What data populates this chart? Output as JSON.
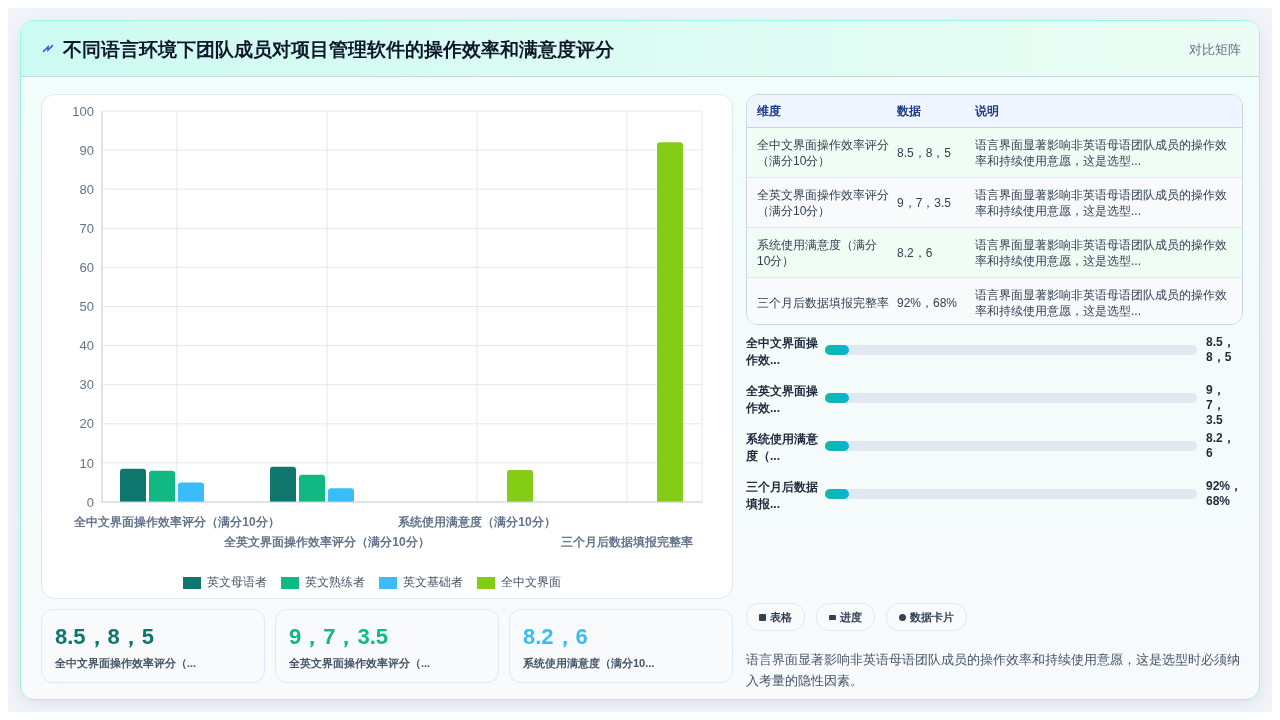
{
  "chart_data": [
    {
      "type": "bar",
      "title": "不同语言环境下团队成员对项目管理软件的操作效率和满意度评分",
      "categories": [
        "全中文界面操作效率评分（满分10分）",
        "全英文界面操作效率评分（满分10分）",
        "系统使用满意度（满分10分）",
        "三个月后数据填报完整率"
      ],
      "series": [
        {
          "name": "英文母语者",
          "color": "#0f766e",
          "values": [
            8.5,
            9,
            null,
            null
          ]
        },
        {
          "name": "英文熟练者",
          "color": "#10b981",
          "values": [
            8,
            7,
            null,
            null
          ]
        },
        {
          "name": "英文基础者",
          "color": "#38bdf8",
          "values": [
            5,
            3.5,
            null,
            null
          ]
        },
        {
          "name": "全中文界面",
          "color": "#84cc16",
          "values": [
            null,
            null,
            8.2,
            92
          ]
        }
      ],
      "ylim": [
        0,
        100
      ],
      "yticks": [
        0,
        10,
        20,
        30,
        40,
        50,
        60,
        70,
        80,
        90,
        100
      ],
      "grid": true,
      "legend": "bottom"
    },
    {
      "type": "other",
      "categories": [
        "全中文界面操作效率评分（满分10分）",
        "全英文界面操作效率评分（满分10分）",
        "系统使用满意度（满分10分）",
        "三个月后数据填报完整率"
      ],
      "value_labels": [
        "8.5，8，5",
        "9，7，3.5",
        "8.2，6",
        "92%，68%"
      ],
      "annotations": [
        "对比矩阵",
        "维度",
        "数据",
        "说明",
        "语言界面显著影响非英语母语团队成员的操作效率和持续使用意愿，这是选型...",
        "全中文界面操作效...",
        "全英文界面操作效...",
        "系统使用满意度（...",
        "三个月后数据填报...",
        "表格",
        "进度",
        "数据卡片",
        "语言界面显著影响非英语母语团队成员的操作效率和持续使用意愿，这是选型时必须纳入考量的隐性因素。"
      ]
    },
    {
      "type": "other",
      "value_labels": [
        "8.5，8，5",
        "9，7，3.5",
        "8.2，6"
      ],
      "colors": [
        "#0f766e",
        "#10b981",
        "#38bdf8"
      ],
      "annotations": [
        "全中文界面操作效率评分（...",
        "全英文界面操作效率评分（...",
        "系统使用满意度（满分10..."
      ]
    }
  ]
}
